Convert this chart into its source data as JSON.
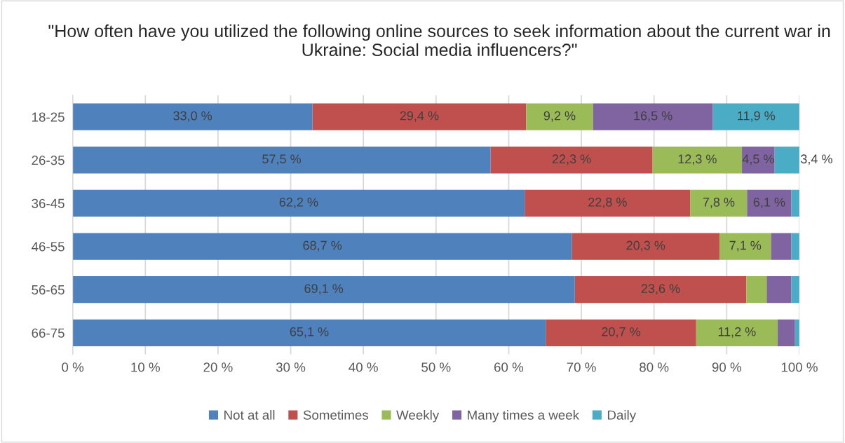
{
  "chart_data": {
    "type": "bar",
    "orientation": "horizontal",
    "stacked": true,
    "title": "\"How often have you utilized the following online sources to seek information about the current war in Ukraine: Social media influencers?\"",
    "categories": [
      "18-25",
      "26-35",
      "36-45",
      "46-55",
      "56-65",
      "66-75"
    ],
    "series": [
      {
        "name": "Not at all",
        "color": "#4f81bd",
        "values": [
          33.0,
          57.5,
          62.2,
          68.7,
          69.1,
          65.1
        ],
        "value_labels": [
          "33,0 %",
          "57,5 %",
          "62,2 %",
          "68,7 %",
          "69,1 %",
          "65,1 %"
        ]
      },
      {
        "name": "Sometimes",
        "color": "#c0504d",
        "values": [
          29.4,
          22.3,
          22.8,
          20.3,
          23.6,
          20.7
        ],
        "value_labels": [
          "29,4 %",
          "22,3 %",
          "22,8 %",
          "20,3 %",
          "23,6 %",
          "20,7 %"
        ]
      },
      {
        "name": "Weekly",
        "color": "#9bbb59",
        "values": [
          9.2,
          12.3,
          7.8,
          7.1,
          2.8,
          11.2
        ],
        "value_labels": [
          "9,2 %",
          "12,3 %",
          "7,8 %",
          "7,1 %",
          null,
          "11,2 %"
        ]
      },
      {
        "name": "Many times a week",
        "color": "#8064a2",
        "values": [
          16.5,
          4.5,
          6.1,
          2.8,
          3.4,
          2.4
        ],
        "value_labels": [
          "16,5 %",
          "4,5 %",
          "6,1 %",
          null,
          null,
          null
        ]
      },
      {
        "name": "Daily",
        "color": "#4bacc6",
        "values": [
          11.9,
          3.4,
          1.1,
          1.1,
          1.1,
          0.6
        ],
        "value_labels": [
          "11,9 %",
          "3,4 %",
          null,
          null,
          null,
          null
        ]
      }
    ],
    "xlim": [
      0,
      100
    ],
    "xticks": [
      {
        "value": 0,
        "label": "0 %"
      },
      {
        "value": 10,
        "label": "10 %"
      },
      {
        "value": 20,
        "label": "20 %"
      },
      {
        "value": 30,
        "label": "30 %"
      },
      {
        "value": 40,
        "label": "40 %"
      },
      {
        "value": 50,
        "label": "50 %"
      },
      {
        "value": 60,
        "label": "60 %"
      },
      {
        "value": 70,
        "label": "70 %"
      },
      {
        "value": 80,
        "label": "80 %"
      },
      {
        "value": 90,
        "label": "90 %"
      },
      {
        "value": 100,
        "label": "100 %"
      }
    ],
    "grid": "x",
    "legend": "bottom"
  }
}
